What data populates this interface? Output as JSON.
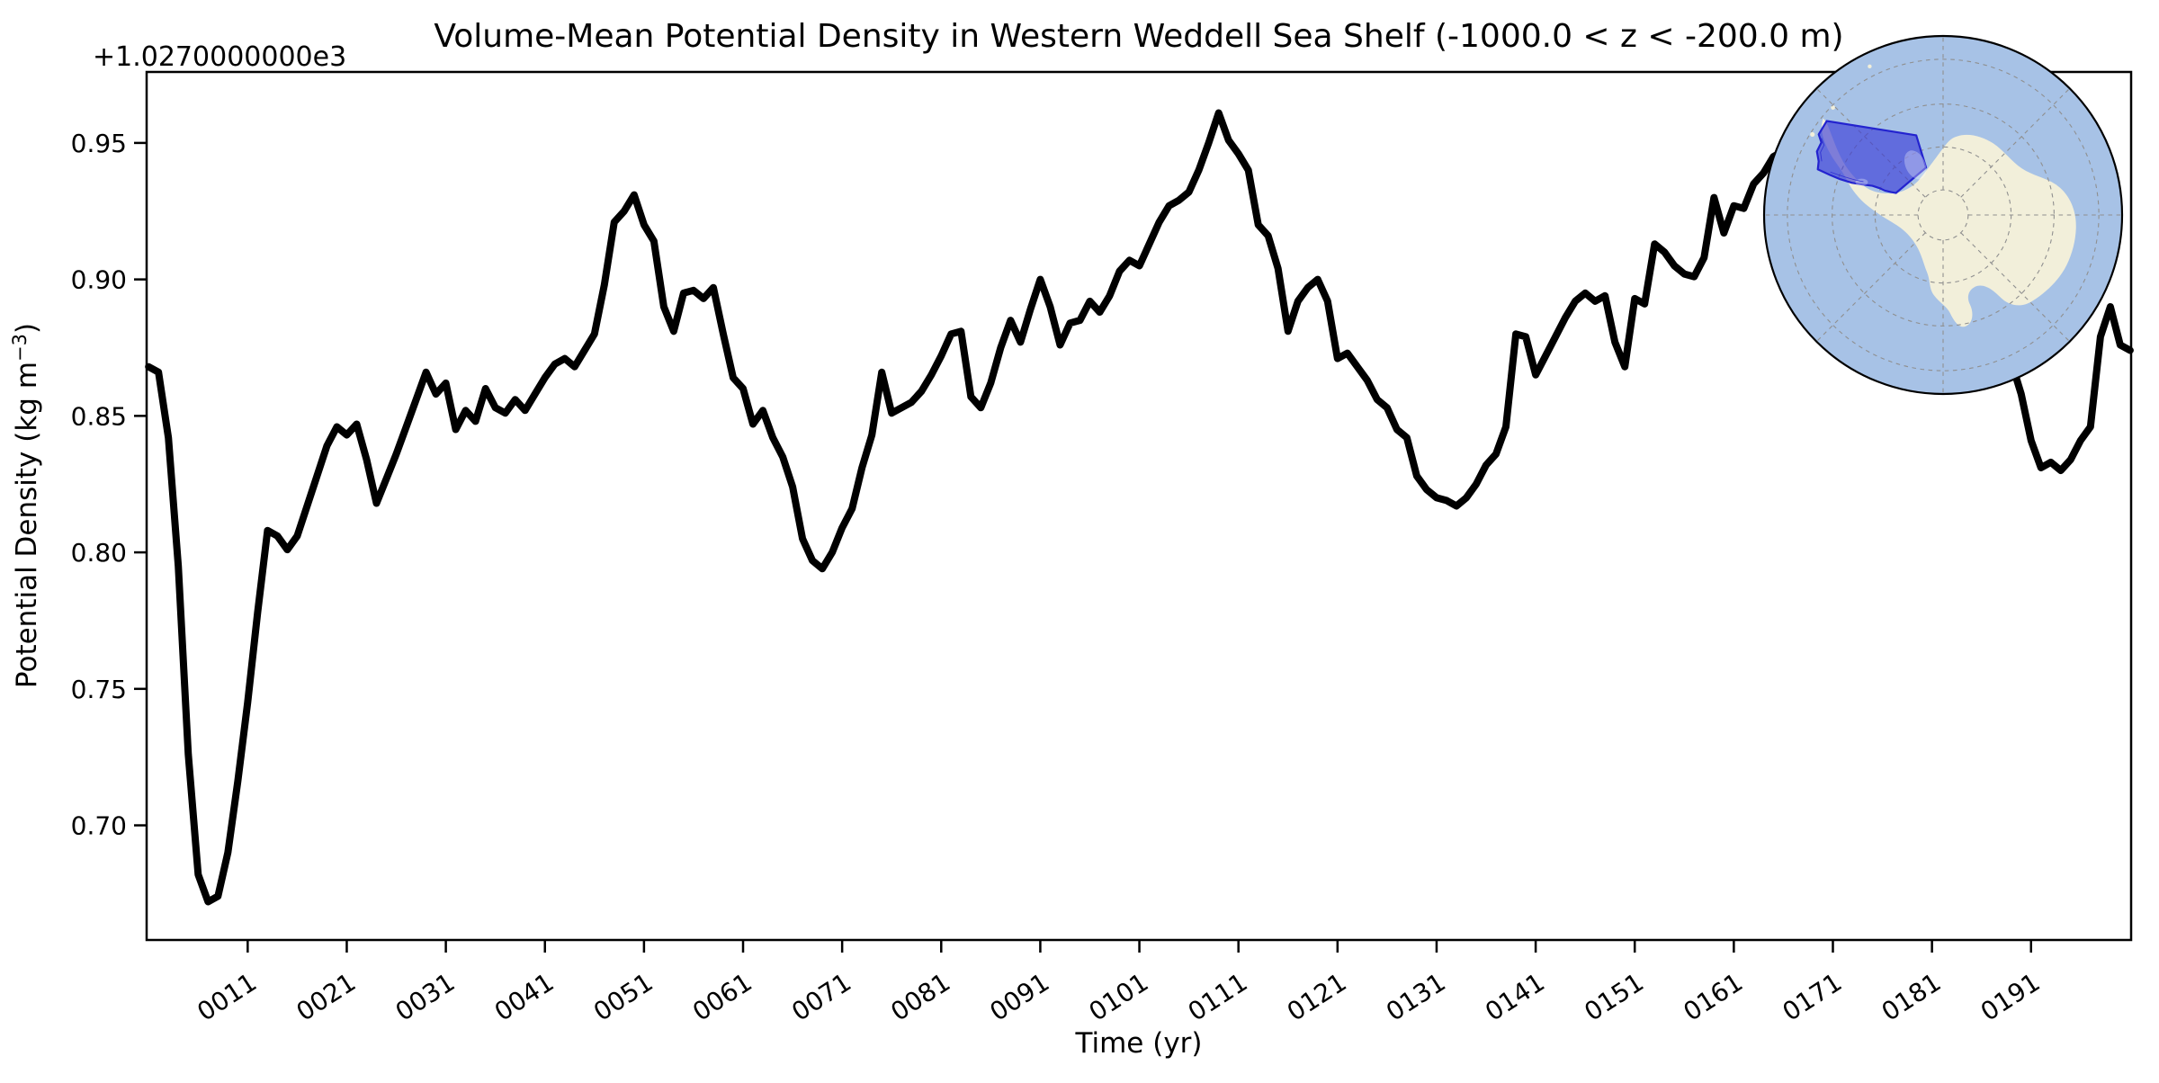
{
  "title": "Volume-Mean Potential Density in Western Weddell Sea Shelf (-1000.0 < z < -200.0 m)",
  "offset_text": "+1.0270000000e3",
  "axes": {
    "xlabel": "Time (yr)",
    "ylabel": "Potential Density (kg m⁻³)",
    "ylabel_parts": {
      "prefix": "Potential Density (kg m",
      "superscript": "−3",
      "suffix": ")"
    },
    "x_tick_labels": [
      "0011",
      "0021",
      "0031",
      "0041",
      "0051",
      "0061",
      "0071",
      "0081",
      "0091",
      "0101",
      "0111",
      "0121",
      "0131",
      "0141",
      "0151",
      "0161",
      "0171",
      "0181",
      "0191"
    ],
    "x_tick_years": [
      11,
      21,
      31,
      41,
      51,
      61,
      71,
      81,
      91,
      101,
      111,
      121,
      131,
      141,
      151,
      161,
      171,
      181,
      191
    ],
    "y_tick_labels": [
      "0.95",
      "0.90",
      "0.85",
      "0.80",
      "0.75",
      "0.70"
    ],
    "y_tick_values": [
      1027.95,
      1027.9,
      1027.85,
      1027.8,
      1027.75,
      1027.7
    ]
  },
  "chart_data": {
    "type": "line",
    "title": "Volume-Mean Potential Density in Western Weddell Sea Shelf (-1000.0 < z < -200.0 m)",
    "xlabel": "Time (yr)",
    "ylabel": "Potential Density (kg m⁻³)",
    "y_offset_displayed": "+1.0270000000e3",
    "legend": "none",
    "grid": false,
    "xlim": [
      0.8,
      201.1
    ],
    "ylim": [
      1027.658,
      1027.976
    ],
    "x_start": 1,
    "x_step": 1,
    "values": [
      1027.868,
      1027.866,
      1027.842,
      1027.795,
      1027.726,
      1027.682,
      1027.672,
      1027.674,
      1027.69,
      1027.716,
      1027.745,
      1027.778,
      1027.808,
      1027.806,
      1027.801,
      1027.806,
      1027.817,
      1027.828,
      1027.839,
      1027.846,
      1027.843,
      1027.847,
      1027.834,
      1027.818,
      1027.827,
      1027.836,
      1027.846,
      1027.856,
      1027.866,
      1027.858,
      1027.862,
      1027.845,
      1027.852,
      1027.848,
      1027.86,
      1027.853,
      1027.851,
      1027.856,
      1027.852,
      1027.858,
      1027.864,
      1027.869,
      1027.871,
      1027.868,
      1027.874,
      1027.88,
      1027.898,
      1027.921,
      1027.925,
      1027.931,
      1027.92,
      1027.914,
      1027.89,
      1027.881,
      1027.895,
      1027.896,
      1027.893,
      1027.897,
      1027.88,
      1027.864,
      1027.86,
      1027.847,
      1027.852,
      1027.842,
      1027.835,
      1027.824,
      1027.805,
      1027.797,
      1027.794,
      1027.8,
      1027.809,
      1027.816,
      1027.831,
      1027.843,
      1027.866,
      1027.851,
      1027.853,
      1027.855,
      1027.859,
      1027.865,
      1027.872,
      1027.88,
      1027.881,
      1027.857,
      1027.853,
      1027.862,
      1027.875,
      1027.885,
      1027.877,
      1027.889,
      1027.9,
      1027.89,
      1027.876,
      1027.884,
      1027.885,
      1027.892,
      1027.888,
      1027.894,
      1027.903,
      1027.907,
      1027.905,
      1027.913,
      1027.921,
      1027.927,
      1027.929,
      1027.932,
      1027.94,
      1027.95,
      1027.961,
      1027.951,
      1027.946,
      1027.94,
      1027.92,
      1027.916,
      1027.904,
      1027.881,
      1027.892,
      1027.897,
      1027.9,
      1027.892,
      1027.871,
      1027.873,
      1027.868,
      1027.863,
      1027.856,
      1027.853,
      1027.845,
      1027.842,
      1027.828,
      1027.823,
      1027.82,
      1027.819,
      1027.817,
      1027.82,
      1027.825,
      1027.832,
      1027.836,
      1027.846,
      1027.88,
      1027.879,
      1027.865,
      1027.872,
      1027.879,
      1027.886,
      1027.892,
      1027.895,
      1027.892,
      1027.894,
      1027.877,
      1027.868,
      1027.893,
      1027.891,
      1027.913,
      1027.91,
      1027.905,
      1027.902,
      1027.901,
      1027.908,
      1027.93,
      1027.917,
      1027.927,
      1027.926,
      1027.935,
      1027.939,
      1027.945,
      1027.947,
      1027.949,
      1027.951,
      1027.948,
      1027.95,
      1027.952,
      1027.949,
      1027.951,
      1027.948,
      1027.95,
      1027.951,
      1027.948,
      1027.946,
      1027.949,
      1027.947,
      1027.944,
      1027.946,
      1027.943,
      1027.94,
      1027.934,
      1027.926,
      1027.908,
      1027.888,
      1027.87,
      1027.858,
      1027.841,
      1027.831,
      1027.833,
      1027.83,
      1027.834,
      1027.841,
      1027.846,
      1027.879,
      1027.89,
      1027.876,
      1027.874
    ]
  },
  "inset_map": {
    "description": "South polar stereographic map of Antarctica with the Western Weddell Sea shelf region highlighted",
    "region_name": "Western Weddell Sea Shelf",
    "colors": {
      "ocean": "#a7c2e6",
      "land": "#f2efda",
      "region_fill": "rgba(55,55,215,0.62)",
      "region_stroke": "#2323cf",
      "graticule": "#8f8f8f",
      "outline": "#000000"
    }
  },
  "colors": {
    "background": "#ffffff",
    "frame": "#000000",
    "line": "#000000",
    "text": "#000000"
  }
}
